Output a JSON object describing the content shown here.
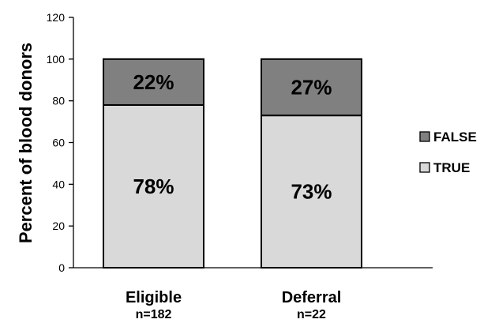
{
  "chart_data": {
    "type": "bar",
    "stacked": true,
    "categories": [
      "Eligible",
      "Deferral"
    ],
    "category_sublabels": [
      "n=182",
      "n=22"
    ],
    "series": [
      {
        "name": "TRUE",
        "values": [
          78,
          73
        ],
        "labels": [
          "78%",
          "73%"
        ],
        "color": "#d9d9d9"
      },
      {
        "name": "FALSE",
        "values": [
          22,
          27
        ],
        "labels": [
          "22%",
          "27%"
        ],
        "color": "#808080"
      }
    ],
    "title": "",
    "xlabel": "",
    "ylabel": "Percent of blood donors",
    "ylim": [
      0,
      120
    ],
    "yticks": [
      0,
      20,
      40,
      60,
      80,
      100,
      120
    ],
    "ytick_labels": [
      "0",
      "20",
      "40",
      "60",
      "80",
      "100",
      "120"
    ],
    "grid": false,
    "legend": {
      "placement": "right",
      "entries": [
        "FALSE",
        "TRUE"
      ]
    }
  }
}
